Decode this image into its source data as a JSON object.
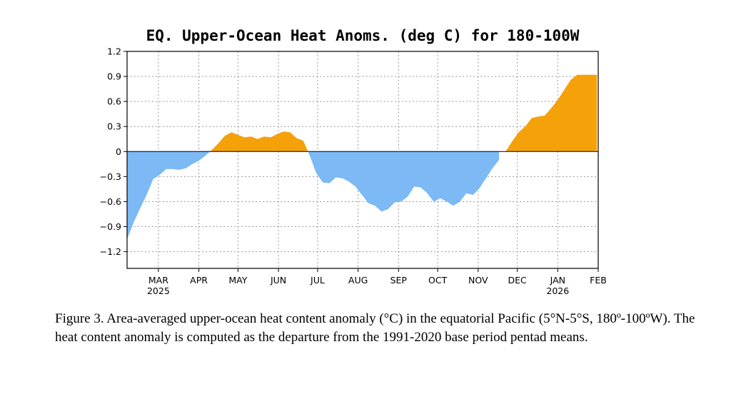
{
  "chart_data": {
    "type": "area",
    "title": "EQ. Upper-Ocean Heat Anoms. (deg C) for 180-100W",
    "ylim": [
      -1.4,
      1.2
    ],
    "yticks": [
      1.2,
      0.9,
      0.6,
      0.3,
      0,
      -0.3,
      -0.6,
      -0.9,
      -1.2
    ],
    "ytick_labels": [
      "1.2",
      "0.9",
      "0.6",
      "0.3",
      "0",
      "-0.3",
      "-0.6",
      "-0.9",
      "-1.2"
    ],
    "xlim": [
      "2025-02-05",
      "2026-02-01"
    ],
    "xticks": [
      {
        "date": "2025-03-01",
        "label": "MAR",
        "year": "2025"
      },
      {
        "date": "2025-04-01",
        "label": "APR",
        "year": ""
      },
      {
        "date": "2025-05-01",
        "label": "MAY",
        "year": ""
      },
      {
        "date": "2025-06-01",
        "label": "JUN",
        "year": ""
      },
      {
        "date": "2025-07-01",
        "label": "JUL",
        "year": ""
      },
      {
        "date": "2025-08-01",
        "label": "AUG",
        "year": ""
      },
      {
        "date": "2025-09-01",
        "label": "SEP",
        "year": ""
      },
      {
        "date": "2025-10-01",
        "label": "OCT",
        "year": ""
      },
      {
        "date": "2025-11-01",
        "label": "NOV",
        "year": ""
      },
      {
        "date": "2025-12-01",
        "label": "DEC",
        "year": ""
      },
      {
        "date": "2026-01-01",
        "label": "JAN",
        "year": "2026"
      },
      {
        "date": "2026-02-01",
        "label": "FEB",
        "year": ""
      }
    ],
    "grid": true,
    "positive_color": "#f4a10a",
    "negative_color": "#7cb9f5",
    "x": [
      "2025-02-05",
      "2025-02-10",
      "2025-02-15",
      "2025-02-20",
      "2025-02-25",
      "2025-03-02",
      "2025-03-07",
      "2025-03-12",
      "2025-03-17",
      "2025-03-22",
      "2025-03-27",
      "2025-04-01",
      "2025-04-06",
      "2025-04-11",
      "2025-04-16",
      "2025-04-21",
      "2025-04-26",
      "2025-05-01",
      "2025-05-06",
      "2025-05-11",
      "2025-05-16",
      "2025-05-21",
      "2025-05-26",
      "2025-05-31",
      "2025-06-05",
      "2025-06-10",
      "2025-06-15",
      "2025-06-20",
      "2025-06-25",
      "2025-06-30",
      "2025-07-05",
      "2025-07-10",
      "2025-07-15",
      "2025-07-20",
      "2025-07-25",
      "2025-07-30",
      "2025-08-04",
      "2025-08-09",
      "2025-08-14",
      "2025-08-19",
      "2025-08-24",
      "2025-08-29",
      "2025-09-03",
      "2025-09-08",
      "2025-09-13",
      "2025-09-18",
      "2025-09-23",
      "2025-09-28",
      "2025-10-03",
      "2025-10-08",
      "2025-10-13",
      "2025-10-18",
      "2025-10-23",
      "2025-10-28",
      "2025-11-02",
      "2025-11-07",
      "2025-11-12",
      "2025-11-17",
      "2025-11-22",
      "2025-11-27",
      "2025-12-02",
      "2025-12-07",
      "2025-12-12",
      "2025-12-17",
      "2025-12-22",
      "2025-12-27",
      "2026-01-01",
      "2026-01-06",
      "2026-01-11",
      "2026-01-16",
      "2026-01-21",
      "2026-01-26",
      "2026-01-31"
    ],
    "values": [
      -1.05,
      -0.85,
      -0.68,
      -0.52,
      -0.33,
      -0.28,
      -0.21,
      -0.21,
      -0.22,
      -0.2,
      -0.15,
      -0.11,
      -0.05,
      0.02,
      0.1,
      0.19,
      0.23,
      0.2,
      0.17,
      0.18,
      0.15,
      0.18,
      0.17,
      0.21,
      0.24,
      0.23,
      0.16,
      0.13,
      -0.05,
      -0.26,
      -0.37,
      -0.38,
      -0.31,
      -0.32,
      -0.36,
      -0.42,
      -0.52,
      -0.62,
      -0.65,
      -0.72,
      -0.69,
      -0.61,
      -0.6,
      -0.54,
      -0.42,
      -0.43,
      -0.5,
      -0.6,
      -0.56,
      -0.6,
      -0.65,
      -0.6,
      -0.5,
      -0.52,
      -0.44,
      -0.32,
      -0.2,
      -0.1,
      0.0,
      0.12,
      0.23,
      0.3,
      0.4,
      0.42,
      0.43,
      0.52,
      0.62,
      0.74,
      0.86,
      0.92,
      0.92,
      0.92,
      0.92
    ]
  },
  "caption": "Figure 3. Area-averaged upper-ocean heat content anomaly (°C) in the equatorial Pacific (5°N-5°S, 180º-100ºW). The heat content anomaly is computed as the departure from the 1991-2020 base period pentad means."
}
